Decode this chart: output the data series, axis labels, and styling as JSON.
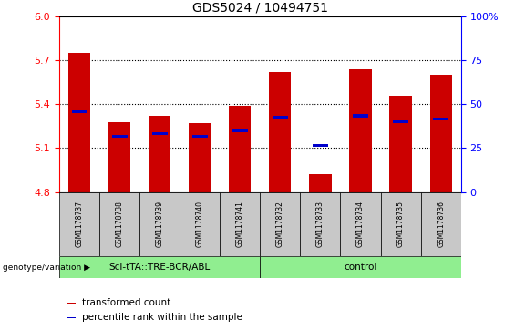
{
  "title": "GDS5024 / 10494751",
  "samples": [
    "GSM1178737",
    "GSM1178738",
    "GSM1178739",
    "GSM1178740",
    "GSM1178741",
    "GSM1178732",
    "GSM1178733",
    "GSM1178734",
    "GSM1178735",
    "GSM1178736"
  ],
  "red_values": [
    5.75,
    5.28,
    5.32,
    5.27,
    5.39,
    5.62,
    4.92,
    5.64,
    5.46,
    5.6
  ],
  "blue_values": [
    5.35,
    5.18,
    5.2,
    5.18,
    5.22,
    5.31,
    5.12,
    5.32,
    5.28,
    5.3
  ],
  "ymin": 4.8,
  "ymax": 6.0,
  "y_ticks_left": [
    4.8,
    5.1,
    5.4,
    5.7,
    6.0
  ],
  "y_ticks_right_vals": [
    0,
    25,
    50,
    75,
    100
  ],
  "groups": [
    {
      "label": "ScI-tTA::TRE-BCR/ABL",
      "start": 0,
      "end": 5
    },
    {
      "label": "control",
      "start": 5,
      "end": 10
    }
  ],
  "group_label_prefix": "genotype/variation",
  "bar_color": "#cc0000",
  "blue_color": "#0000cc",
  "bar_width": 0.55,
  "bg_color": "#c8c8c8",
  "green_color": "#90EE90",
  "plot_bg": "#ffffff",
  "legend": [
    {
      "label": "transformed count",
      "color": "#cc0000"
    },
    {
      "label": "percentile rank within the sample",
      "color": "#0000cc"
    }
  ],
  "grid_lines": [
    5.1,
    5.4,
    5.7
  ]
}
